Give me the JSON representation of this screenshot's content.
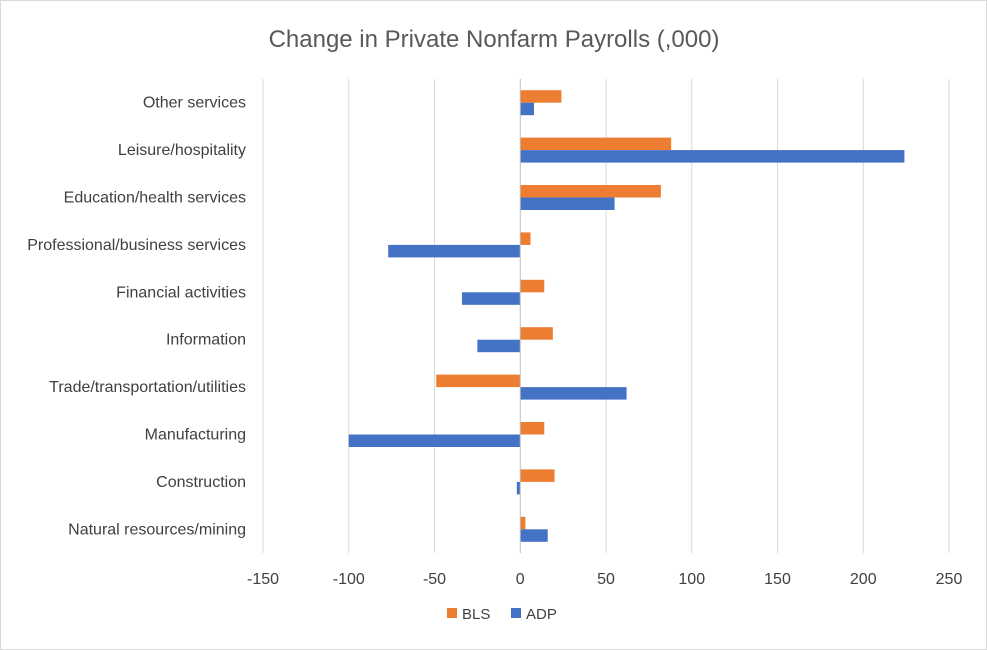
{
  "chart_data": {
    "type": "bar",
    "orientation": "horizontal",
    "title": "Change in Private Nonfarm Payrolls (,000)",
    "xlabel": "",
    "ylabel": "",
    "xlim": [
      -150,
      250
    ],
    "xticks": [
      -150,
      -100,
      -50,
      0,
      50,
      100,
      150,
      200,
      250
    ],
    "xtick_labels": [
      "-150",
      "-100",
      "-50",
      "0",
      "50",
      "100",
      "150",
      "200",
      "250"
    ],
    "grid": true,
    "legend_position": "bottom",
    "categories": [
      "Other services",
      "Leisure/hospitality",
      "Education/health services",
      "Professional/business services",
      "Financial activities",
      "Information",
      "Trade/transportation/utilities",
      "Manufacturing",
      "Construction",
      "Natural resources/mining"
    ],
    "series": [
      {
        "name": "BLS",
        "color": "#ed7d31",
        "values": [
          24,
          88,
          82,
          6,
          14,
          19,
          -49,
          14,
          20,
          3
        ]
      },
      {
        "name": "ADP",
        "color": "#4472c4",
        "values": [
          8,
          224,
          55,
          -77,
          -34,
          -25,
          62,
          -100,
          -2,
          16
        ]
      }
    ]
  }
}
